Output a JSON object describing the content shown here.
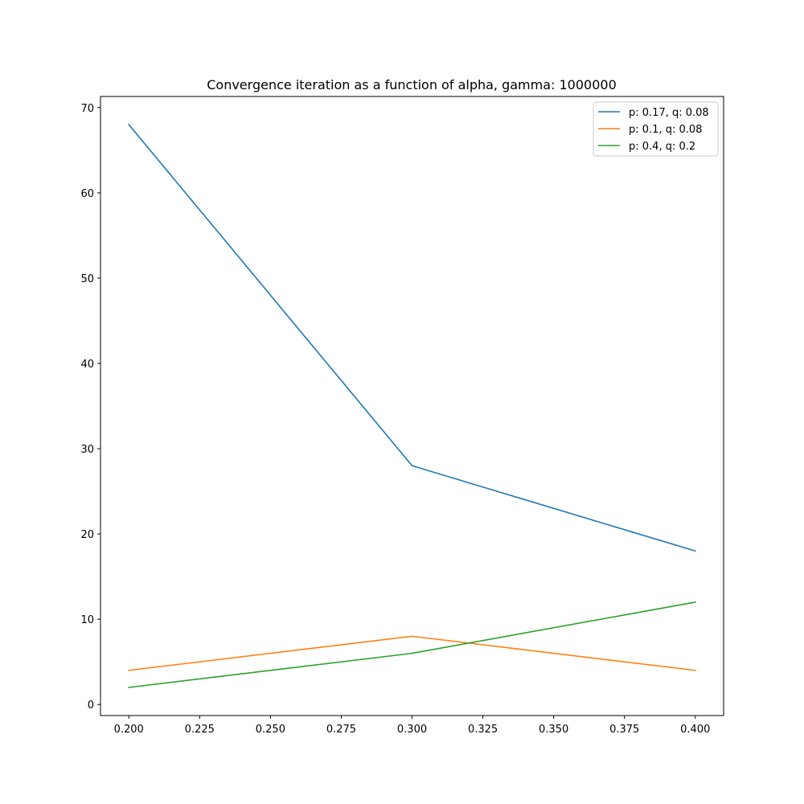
{
  "chart_data": {
    "type": "line",
    "title": "Convergence iteration as a function of alpha, gamma: 1000000",
    "xlabel": "",
    "ylabel": "",
    "x": [
      0.2,
      0.3,
      0.4
    ],
    "xlim": [
      0.19,
      0.41
    ],
    "ylim": [
      -1.3,
      71.3
    ],
    "xticks": [
      0.2,
      0.225,
      0.25,
      0.275,
      0.3,
      0.325,
      0.35,
      0.375,
      0.4
    ],
    "xtick_labels": [
      "0.200",
      "0.225",
      "0.250",
      "0.275",
      "0.300",
      "0.325",
      "0.350",
      "0.375",
      "0.400"
    ],
    "yticks": [
      0,
      10,
      20,
      30,
      40,
      50,
      60,
      70
    ],
    "ytick_labels": [
      "0",
      "10",
      "20",
      "30",
      "40",
      "50",
      "60",
      "70"
    ],
    "grid": false,
    "legend_position": "top-right",
    "series": [
      {
        "name": "p: 0.17, q: 0.08",
        "values": [
          68,
          28,
          18
        ],
        "color": "#1f77b4"
      },
      {
        "name": "p: 0.1, q: 0.08",
        "values": [
          4,
          8,
          4
        ],
        "color": "#ff7f0e"
      },
      {
        "name": "p: 0.4, q: 0.2",
        "values": [
          2,
          6,
          12
        ],
        "color": "#2ca02c"
      }
    ]
  }
}
